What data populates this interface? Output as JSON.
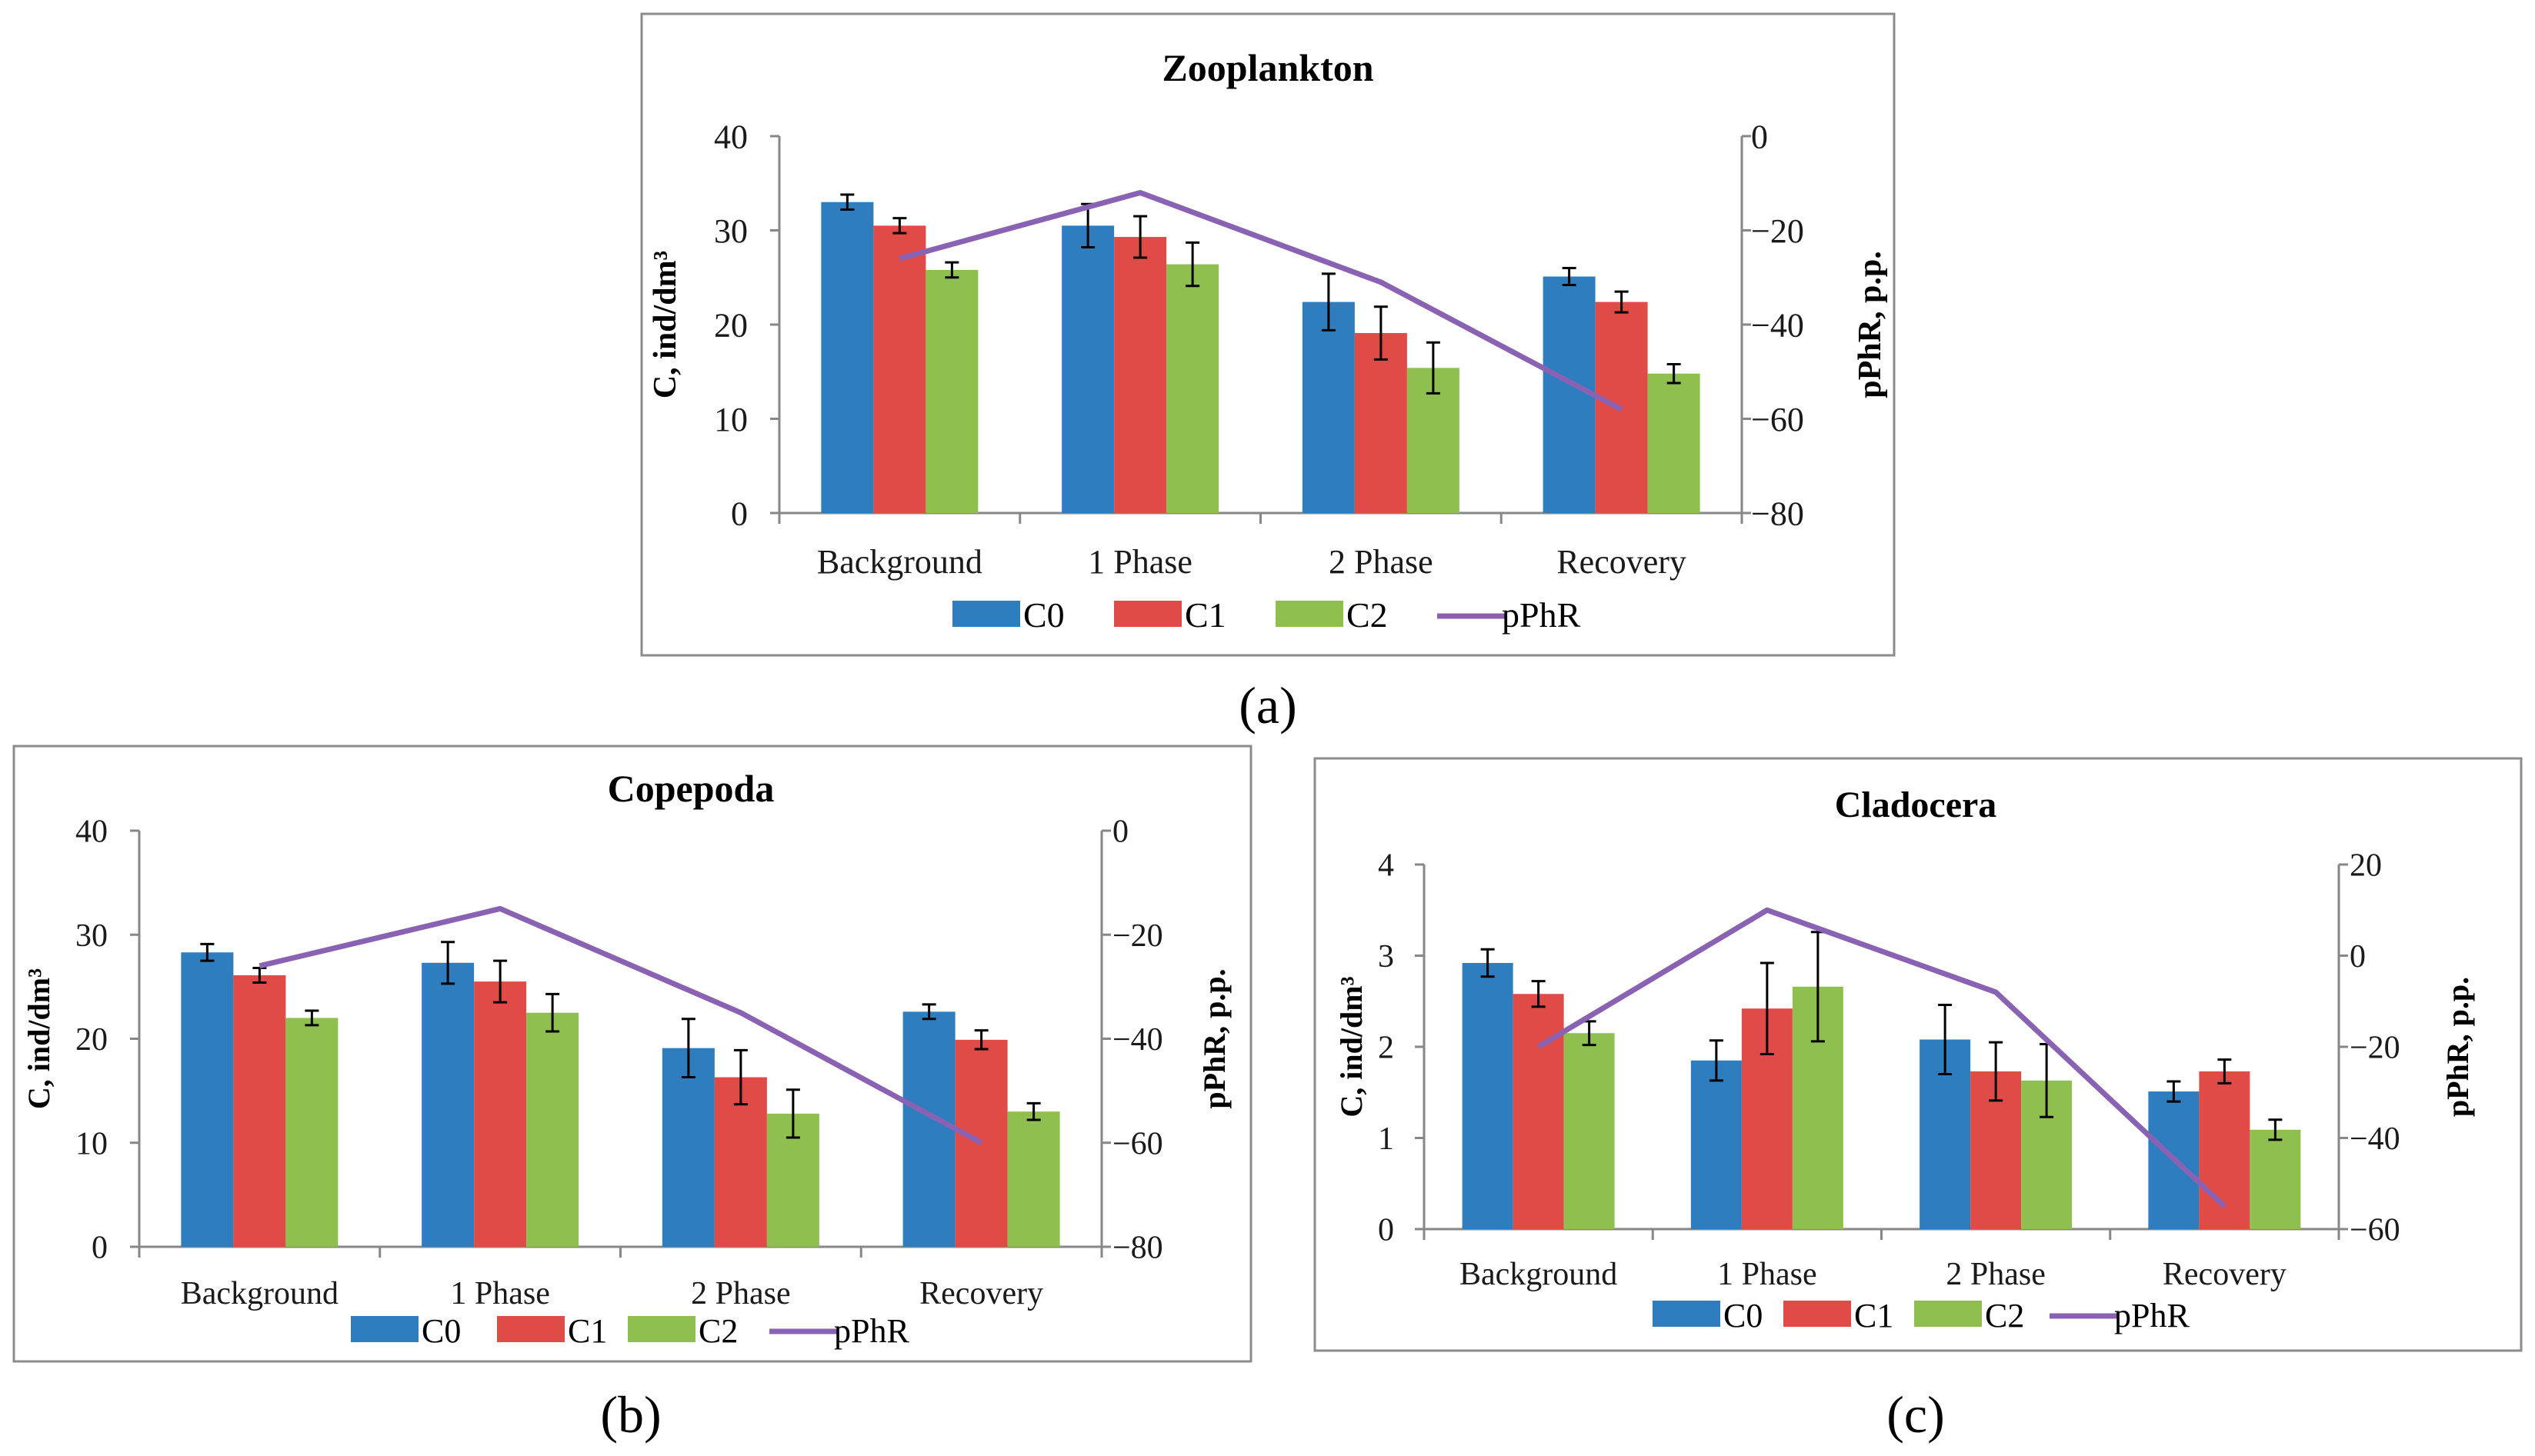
{
  "colors": {
    "C0": "#2e7ebf",
    "C1": "#e04a47",
    "C2": "#8fc04f",
    "pPhR": "#8a62b4"
  },
  "legend": [
    "C0",
    "C1",
    "C2",
    "pPhR"
  ],
  "panel_labels": [
    "(a)",
    "(b)",
    "(c)"
  ],
  "chart_data": [
    {
      "type": "bar",
      "title": "Zooplankton",
      "categories": [
        "Background",
        "1 Phase",
        "2 Phase",
        "Recovery"
      ],
      "ylabel": "C, ind/dm³",
      "y2label": "pPhR, p.p.",
      "ylim": [
        0,
        40
      ],
      "yticks": [
        0,
        10,
        20,
        30,
        40
      ],
      "y2lim": [
        -80,
        0
      ],
      "y2ticks": [
        -80,
        -60,
        -40,
        -20,
        0
      ],
      "series": [
        {
          "name": "C0",
          "values": [
            33.0,
            30.5,
            22.4,
            25.1
          ],
          "errors": [
            0.8,
            2.3,
            3.0,
            0.9
          ]
        },
        {
          "name": "C1",
          "values": [
            30.5,
            29.3,
            19.1,
            22.4
          ],
          "errors": [
            0.8,
            2.2,
            2.8,
            1.1
          ]
        },
        {
          "name": "C2",
          "values": [
            25.8,
            26.4,
            15.4,
            14.8
          ],
          "errors": [
            0.8,
            2.3,
            2.7,
            1.0
          ]
        }
      ],
      "line": {
        "name": "pPhR",
        "values": [
          -26,
          -12,
          -31,
          -58
        ]
      }
    },
    {
      "type": "bar",
      "title": "Copepoda",
      "categories": [
        "Background",
        "1 Phase",
        "2 Phase",
        "Recovery"
      ],
      "ylabel": "C, ind/dm³",
      "y2label": "pPhR, p.p.",
      "ylim": [
        0,
        40
      ],
      "yticks": [
        0,
        10,
        20,
        30,
        40
      ],
      "y2lim": [
        -80,
        0
      ],
      "y2ticks": [
        -80,
        -60,
        -40,
        -20,
        0
      ],
      "series": [
        {
          "name": "C0",
          "values": [
            28.3,
            27.3,
            19.1,
            22.6
          ],
          "errors": [
            0.8,
            2.0,
            2.8,
            0.7
          ]
        },
        {
          "name": "C1",
          "values": [
            26.1,
            25.5,
            16.3,
            19.9
          ],
          "errors": [
            0.7,
            2.0,
            2.6,
            0.9
          ]
        },
        {
          "name": "C2",
          "values": [
            22.0,
            22.5,
            12.8,
            13.0
          ],
          "errors": [
            0.7,
            1.8,
            2.3,
            0.8
          ]
        }
      ],
      "line": {
        "name": "pPhR",
        "values": [
          -26,
          -15,
          -35,
          -60
        ]
      }
    },
    {
      "type": "bar",
      "title": "Cladocera",
      "categories": [
        "Background",
        "1 Phase",
        "2 Phase",
        "Recovery"
      ],
      "ylabel": "C, ind/dm³",
      "y2label": "pPhR, p.p.",
      "ylim": [
        0,
        4
      ],
      "yticks": [
        0,
        1,
        2,
        3,
        4
      ],
      "y2lim": [
        -60,
        20
      ],
      "y2ticks": [
        -60,
        -40,
        -20,
        0,
        20
      ],
      "series": [
        {
          "name": "C0",
          "values": [
            2.92,
            1.85,
            2.08,
            1.51
          ],
          "errors": [
            0.15,
            0.22,
            0.38,
            0.11
          ]
        },
        {
          "name": "C1",
          "values": [
            2.58,
            2.42,
            1.73,
            1.73
          ],
          "errors": [
            0.14,
            0.5,
            0.32,
            0.13
          ]
        },
        {
          "name": "C2",
          "values": [
            2.15,
            2.66,
            1.63,
            1.09
          ],
          "errors": [
            0.13,
            0.6,
            0.4,
            0.11
          ]
        }
      ],
      "line": {
        "name": "pPhR",
        "values": [
          -20,
          10,
          -8,
          -55
        ]
      }
    }
  ]
}
